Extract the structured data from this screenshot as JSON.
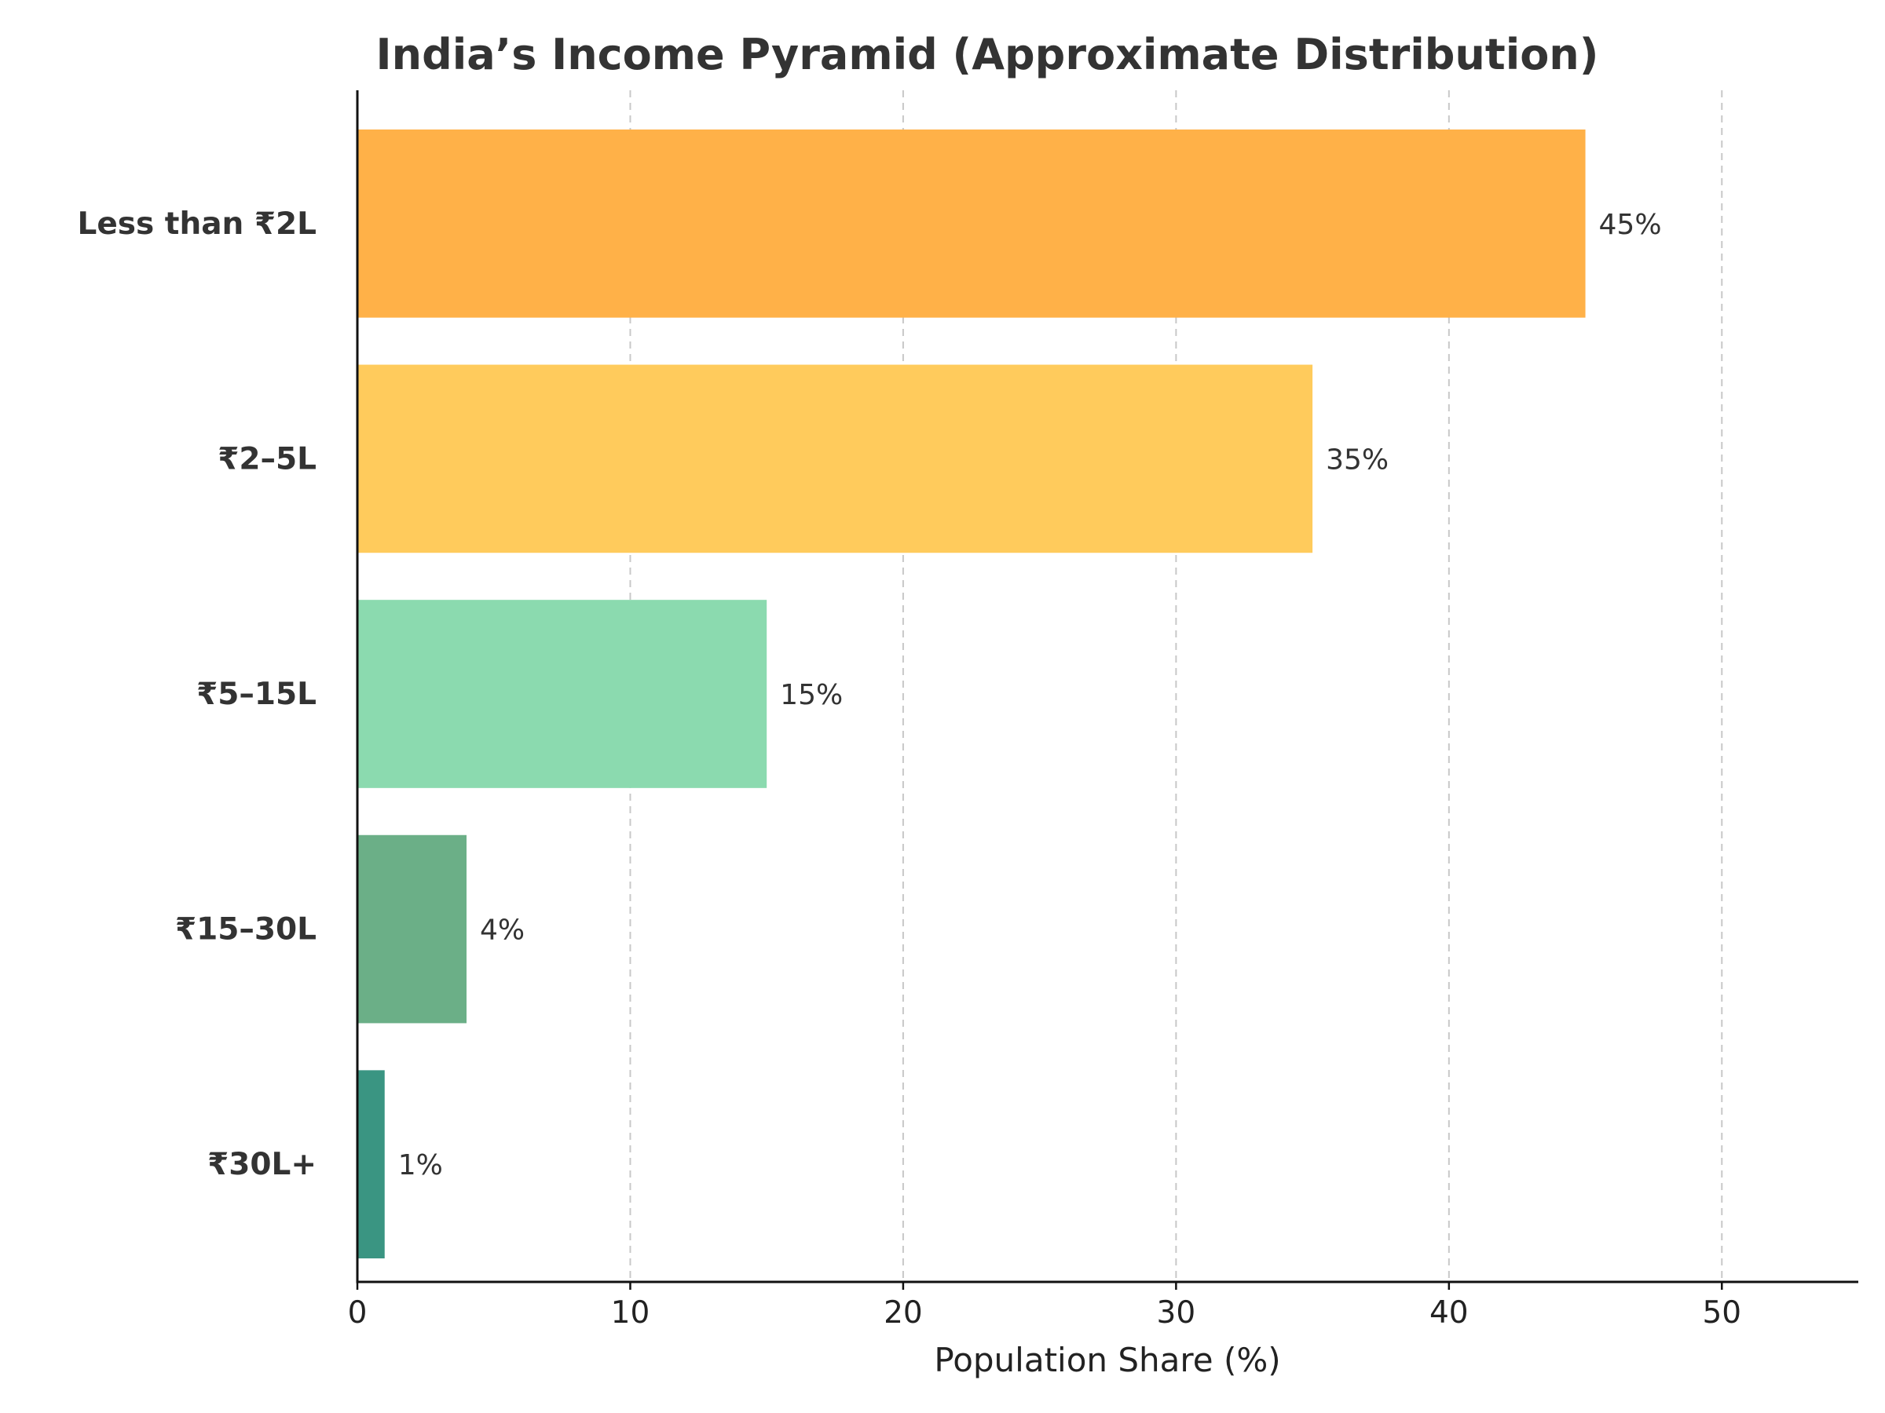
{
  "chart_data": {
    "type": "bar",
    "orientation": "horizontal",
    "title": "India’s Income Pyramid (Approximate Distribution)",
    "xlabel": "Population Share (%)",
    "ylabel": "",
    "xlim": [
      0,
      55
    ],
    "xticks": [
      0,
      10,
      20,
      30,
      40,
      50
    ],
    "grid": "x-dashed",
    "categories": [
      "Less than ₹2L",
      "₹2–5L",
      "₹5–15L",
      "₹15–30L",
      "₹30L+"
    ],
    "values": [
      45,
      35,
      15,
      4,
      1
    ],
    "value_labels": [
      "45%",
      "35%",
      "15%",
      "4%",
      "1%"
    ],
    "colors": [
      "#FFB148",
      "#FFCB5C",
      "#8BDAAF",
      "#6BAF87",
      "#3A9582"
    ]
  }
}
